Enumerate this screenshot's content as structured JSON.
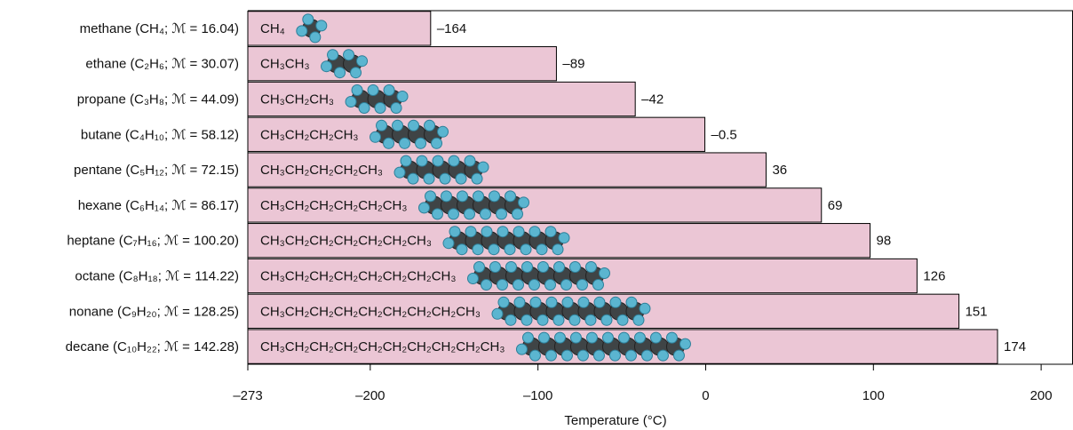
{
  "chart_data": {
    "type": "bar",
    "orientation": "horizontal",
    "xlabel": "Temperature (°C)",
    "categories": [
      "methane (CH₄; ℳ = 16.04)",
      "ethane (C₂H₆; ℳ = 30.07)",
      "propane (C₃H₈; ℳ = 44.09)",
      "butane (C₄H₁₀; ℳ = 58.12)",
      "pentane (C₅H₁₂; ℳ = 72.15)",
      "hexane (C₆H₁₄; ℳ = 86.17)",
      "heptane (C₇H₁₆; ℳ = 100.20)",
      "octane (C₈H₁₈; ℳ = 114.22)",
      "nonane (C₉H₂₀; ℳ = 128.25)",
      "decane (C₁₀H₂₂; ℳ = 142.28)"
    ],
    "formulas": [
      "CH₄",
      "CH₃CH₃",
      "CH₃CH₂CH₃",
      "CH₃CH₂CH₂CH₃",
      "CH₃CH₂CH₂CH₂CH₃",
      "CH₃CH₂CH₂CH₂CH₂CH₃",
      "CH₃CH₂CH₂CH₂CH₂CH₂CH₃",
      "CH₃CH₂CH₂CH₂CH₂CH₂CH₂CH₃",
      "CH₃CH₂CH₂CH₂CH₂CH₂CH₂CH₂CH₃",
      "CH₃CH₂CH₂CH₂CH₂CH₂CH₂CH₂CH₂CH₃"
    ],
    "values": [
      -164,
      -89,
      -42,
      -0.5,
      36,
      69,
      98,
      126,
      151,
      174
    ],
    "value_labels": [
      "–164",
      "–89",
      "–42",
      "–0.5",
      "36",
      "69",
      "98",
      "126",
      "151",
      "174"
    ],
    "color": "#ebc6d5",
    "xlim": [
      -273,
      219
    ],
    "xticks": [
      {
        "value": -273,
        "label": "–273"
      },
      {
        "value": -200,
        "label": "–200"
      },
      {
        "value": -100,
        "label": "–100"
      },
      0,
      100,
      200
    ]
  }
}
